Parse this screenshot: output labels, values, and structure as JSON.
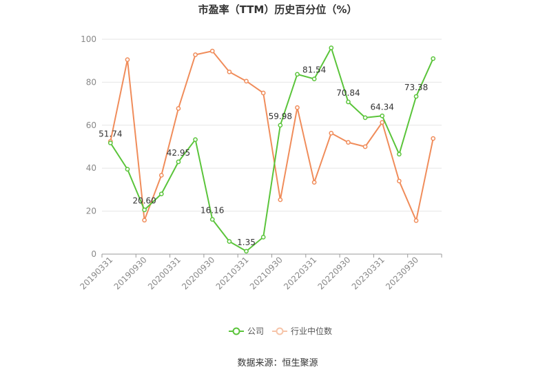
{
  "chart_data": {
    "type": "line",
    "title": "市盈率（TTM）历史百分位（%）",
    "x": [
      "20190331",
      "20190630",
      "20190930",
      "20191231",
      "20200331",
      "20200630",
      "20200930",
      "20201231",
      "20210331",
      "20210630",
      "20210930",
      "20211231",
      "20220331",
      "20220630",
      "20220930",
      "20221231",
      "20230331",
      "20230630",
      "20230930",
      "20231231"
    ],
    "x_tick_labels": [
      "20190331",
      "20190930",
      "20200331",
      "20200930",
      "20210331",
      "20210930",
      "20220331",
      "20220930",
      "20230331",
      "20230930"
    ],
    "ylim": [
      0,
      100
    ],
    "yticks": [
      0,
      20,
      40,
      60,
      80,
      100
    ],
    "grid": true,
    "legend_position": "bottom",
    "series": [
      {
        "name": "公司",
        "color": "#5ac43a",
        "values": [
          51.74,
          39.5,
          20.6,
          28.0,
          42.95,
          53.3,
          16.16,
          5.9,
          1.35,
          7.9,
          59.98,
          83.7,
          81.54,
          96.0,
          70.84,
          63.5,
          64.34,
          46.5,
          73.38,
          91.0
        ],
        "labels": [
          "51.74",
          "",
          "20.60",
          "",
          "42.95",
          "",
          "16.16",
          "",
          "1.35",
          "",
          "59.98",
          "",
          "81.54",
          "",
          "70.84",
          "",
          "64.34",
          "",
          "73.38",
          ""
        ]
      },
      {
        "name": "行业中位数",
        "color": "#f08c5a",
        "values": [
          52.5,
          90.5,
          15.8,
          36.7,
          67.8,
          92.8,
          94.5,
          84.8,
          80.5,
          75.0,
          25.3,
          68.2,
          33.4,
          56.3,
          52.0,
          50.0,
          61.3,
          34.0,
          15.6,
          53.8
        ],
        "labels": []
      }
    ]
  },
  "source_text": "数据来源：恒生聚源"
}
